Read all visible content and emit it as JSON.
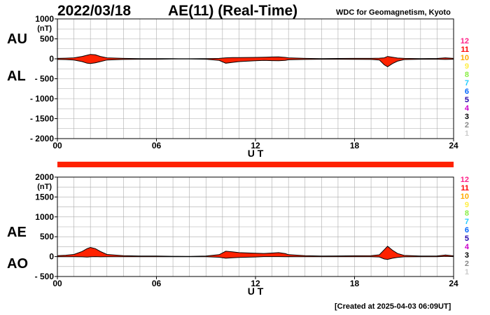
{
  "header": {
    "date": "2022/03/18",
    "title": "AE(11) (Real-Time)",
    "provider": "WDC for Geomagnetism, Kyoto"
  },
  "footer": {
    "created": "[Created at 2025-04-03 06:09UT]"
  },
  "colors": {
    "fill": "#ff2200",
    "outline": "#000000",
    "grid": "#aaaaaa",
    "status_bar": "#ff2200"
  },
  "station_legend": [
    {
      "label": "12",
      "color": "#ff2288"
    },
    {
      "label": "11",
      "color": "#ff0000"
    },
    {
      "label": "10",
      "color": "#ffaa00"
    },
    {
      "label": "9",
      "color": "#ffee44"
    },
    {
      "label": "8",
      "color": "#88ee44"
    },
    {
      "label": "7",
      "color": "#22ccff"
    },
    {
      "label": "6",
      "color": "#0066ff"
    },
    {
      "label": "5",
      "color": "#2200aa"
    },
    {
      "label": "4",
      "color": "#cc00cc"
    },
    {
      "label": "3",
      "color": "#000000"
    },
    {
      "label": "2",
      "color": "#888888"
    },
    {
      "label": "1",
      "color": "#cccccc"
    }
  ],
  "chart_data": [
    {
      "type": "area",
      "upper_label": "AU",
      "lower_label": "AL",
      "unit": "(nT)",
      "xlabel": "U T",
      "xlim": [
        0,
        24
      ],
      "xticks": [
        0,
        6,
        12,
        18,
        24
      ],
      "xtick_labels": [
        "00",
        "06",
        "12",
        "18",
        "24"
      ],
      "ylim": [
        -2000,
        1000
      ],
      "yticks": [
        1000,
        500,
        0,
        -500,
        -1000,
        -1500,
        -2000
      ],
      "ytick_labels": [
        "1000",
        "500",
        "0",
        "- 500",
        "- 1000",
        "- 1500",
        "- 2000"
      ],
      "grid": true,
      "series": [
        {
          "name": "AU",
          "x": [
            0,
            0.5,
            1,
            1.5,
            1.8,
            2,
            2.3,
            2.6,
            3,
            4,
            5,
            6,
            7,
            8,
            9,
            9.8,
            10.2,
            10.6,
            11,
            12,
            12.5,
            13,
            13.4,
            13.8,
            14,
            15,
            16,
            17,
            18,
            19,
            19.5,
            19.8,
            20,
            20.3,
            20.6,
            21,
            22,
            23,
            23.5,
            24
          ],
          "values": [
            10,
            15,
            25,
            60,
            90,
            110,
            100,
            60,
            25,
            10,
            5,
            5,
            3,
            2,
            5,
            10,
            25,
            30,
            30,
            35,
            40,
            45,
            50,
            35,
            25,
            10,
            5,
            8,
            10,
            10,
            15,
            25,
            60,
            40,
            20,
            10,
            5,
            8,
            25,
            10
          ]
        },
        {
          "name": "AL",
          "x": [
            0,
            0.5,
            1,
            1.5,
            1.8,
            2,
            2.3,
            2.6,
            3,
            4,
            5,
            6,
            7,
            8,
            9,
            9.8,
            10.2,
            10.6,
            11,
            12,
            12.5,
            13,
            13.4,
            13.8,
            14,
            15,
            16,
            17,
            18,
            19,
            19.5,
            19.8,
            20,
            20.3,
            20.6,
            21,
            22,
            23,
            23.5,
            24
          ],
          "values": [
            -15,
            -20,
            -30,
            -70,
            -110,
            -120,
            -100,
            -70,
            -30,
            -15,
            -10,
            -10,
            -5,
            -5,
            -10,
            -40,
            -110,
            -90,
            -70,
            -50,
            -40,
            -45,
            -50,
            -40,
            -25,
            -15,
            -10,
            -10,
            -12,
            -15,
            -30,
            -150,
            -200,
            -120,
            -60,
            -20,
            -10,
            -10,
            -15,
            -10
          ]
        }
      ]
    },
    {
      "type": "area",
      "upper_label": "AE",
      "lower_label": "AO",
      "unit": "(nT)",
      "xlabel": "U T",
      "xlim": [
        0,
        24
      ],
      "xticks": [
        0,
        6,
        12,
        18,
        24
      ],
      "xtick_labels": [
        "00",
        "06",
        "12",
        "18",
        "24"
      ],
      "ylim": [
        -500,
        2000
      ],
      "yticks": [
        2000,
        1500,
        1000,
        500,
        0,
        -500
      ],
      "ytick_labels": [
        "2000",
        "1500",
        "1000",
        "500",
        "0",
        "- 500"
      ],
      "grid": true,
      "series": [
        {
          "name": "AE",
          "x": [
            0,
            0.5,
            1,
            1.5,
            1.8,
            2,
            2.3,
            2.6,
            3,
            4,
            5,
            6,
            7,
            8,
            9,
            9.8,
            10.2,
            10.6,
            11,
            12,
            12.5,
            13,
            13.4,
            13.8,
            14,
            15,
            16,
            17,
            18,
            19,
            19.5,
            19.8,
            20,
            20.3,
            20.6,
            21,
            22,
            23,
            23.5,
            24
          ],
          "values": [
            25,
            35,
            55,
            130,
            200,
            230,
            200,
            130,
            55,
            25,
            15,
            15,
            8,
            7,
            15,
            50,
            135,
            120,
            100,
            85,
            80,
            90,
            100,
            75,
            50,
            25,
            15,
            18,
            22,
            25,
            45,
            175,
            260,
            160,
            80,
            30,
            15,
            18,
            40,
            20
          ]
        },
        {
          "name": "AO",
          "x": [
            0,
            0.5,
            1,
            1.5,
            1.8,
            2,
            2.3,
            2.6,
            3,
            4,
            5,
            6,
            7,
            8,
            9,
            9.8,
            10.2,
            10.6,
            11,
            12,
            12.5,
            13,
            13.4,
            13.8,
            14,
            15,
            16,
            17,
            18,
            19,
            19.5,
            19.8,
            20,
            20.3,
            20.6,
            21,
            22,
            23,
            23.5,
            24
          ],
          "values": [
            -3,
            -3,
            -3,
            -5,
            -10,
            -5,
            0,
            -5,
            -3,
            -3,
            -3,
            -3,
            -1,
            -2,
            -3,
            -15,
            -40,
            -30,
            -20,
            -8,
            0,
            0,
            0,
            -3,
            0,
            -3,
            -3,
            -1,
            -1,
            -3,
            -8,
            -60,
            -70,
            -40,
            -20,
            -5,
            -3,
            -1,
            5,
            0
          ]
        }
      ]
    }
  ]
}
